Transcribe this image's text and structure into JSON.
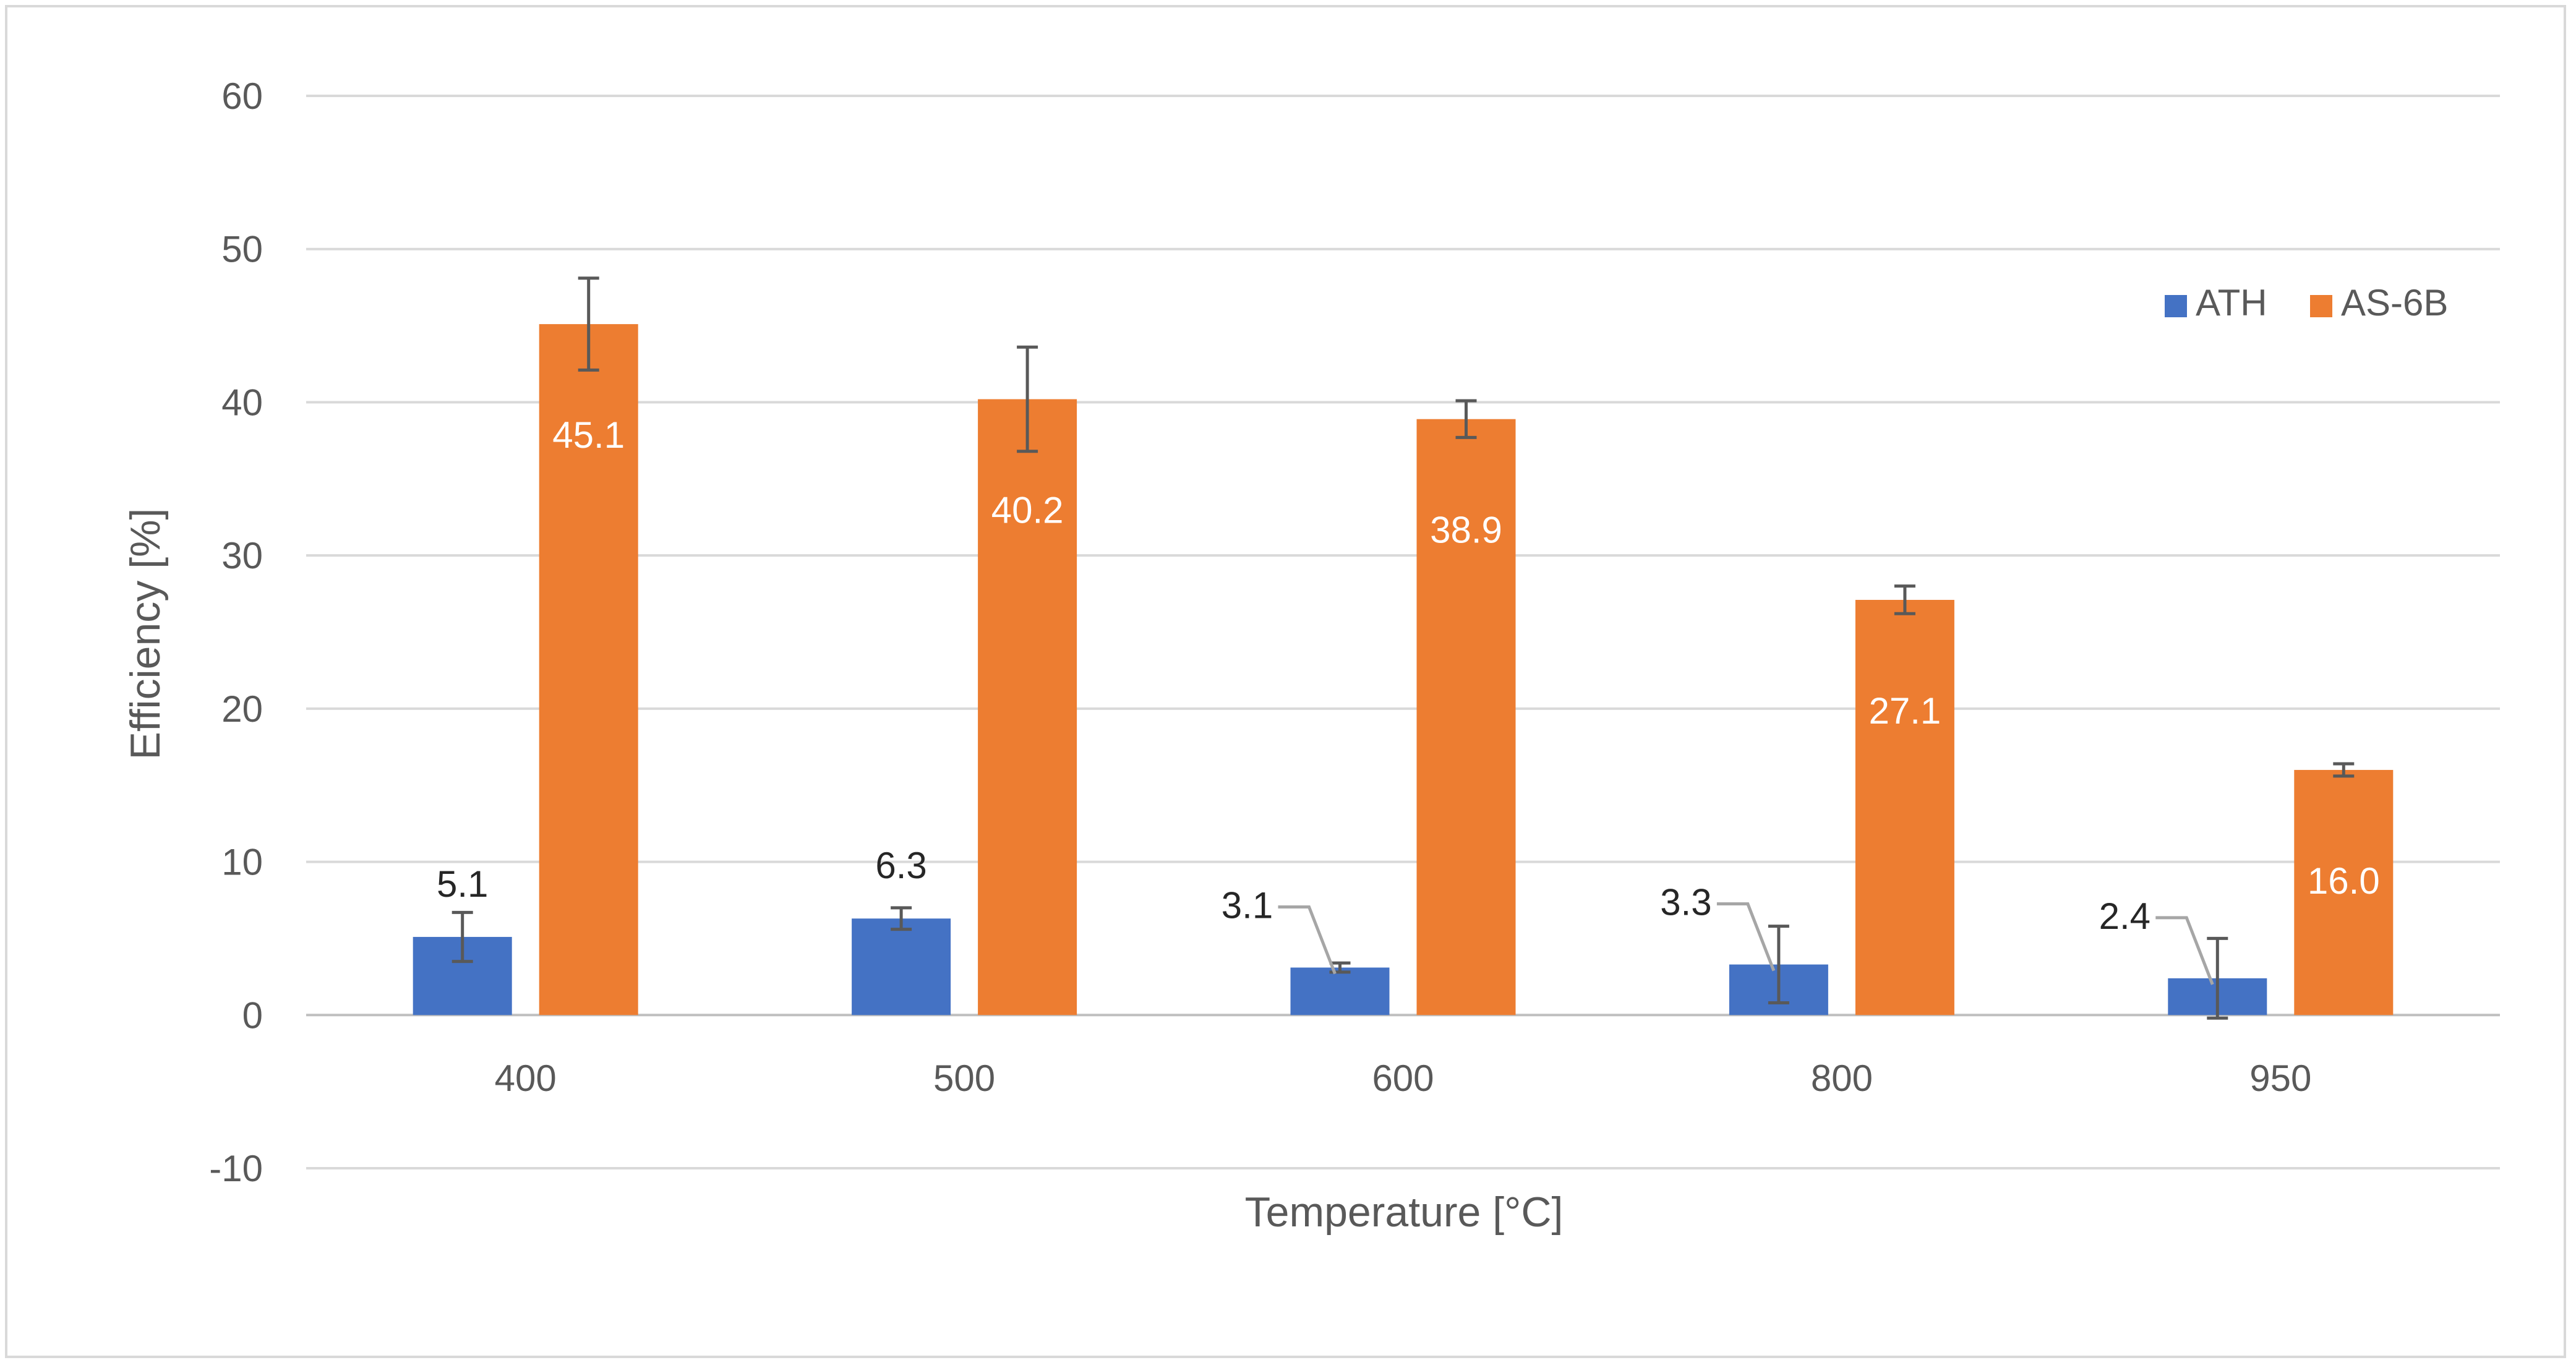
{
  "chart_data": {
    "type": "bar",
    "title": "",
    "xlabel": "Temperature [°C]",
    "ylabel": "Efficiency [%]",
    "categories": [
      "400",
      "500",
      "600",
      "800",
      "950"
    ],
    "ylim": [
      -10,
      60
    ],
    "yticks": [
      -10,
      0,
      10,
      20,
      30,
      40,
      50,
      60
    ],
    "grid": true,
    "legend_position": "top-right",
    "series": [
      {
        "name": "ATH",
        "color": "#4472c4",
        "values": [
          5.1,
          6.3,
          3.1,
          3.3,
          2.4
        ],
        "labels": [
          "5.1",
          "6.3",
          "3.1",
          "3.3",
          "2.4"
        ],
        "error": [
          1.6,
          0.7,
          0.3,
          2.5,
          2.6
        ]
      },
      {
        "name": "AS-6B",
        "color": "#ed7d31",
        "values": [
          45.1,
          40.2,
          38.9,
          27.1,
          16.0
        ],
        "labels": [
          "45.1",
          "40.2",
          "38.9",
          "27.1",
          "16.0"
        ],
        "error": [
          3.0,
          3.4,
          1.2,
          0.9,
          0.4
        ]
      }
    ]
  }
}
